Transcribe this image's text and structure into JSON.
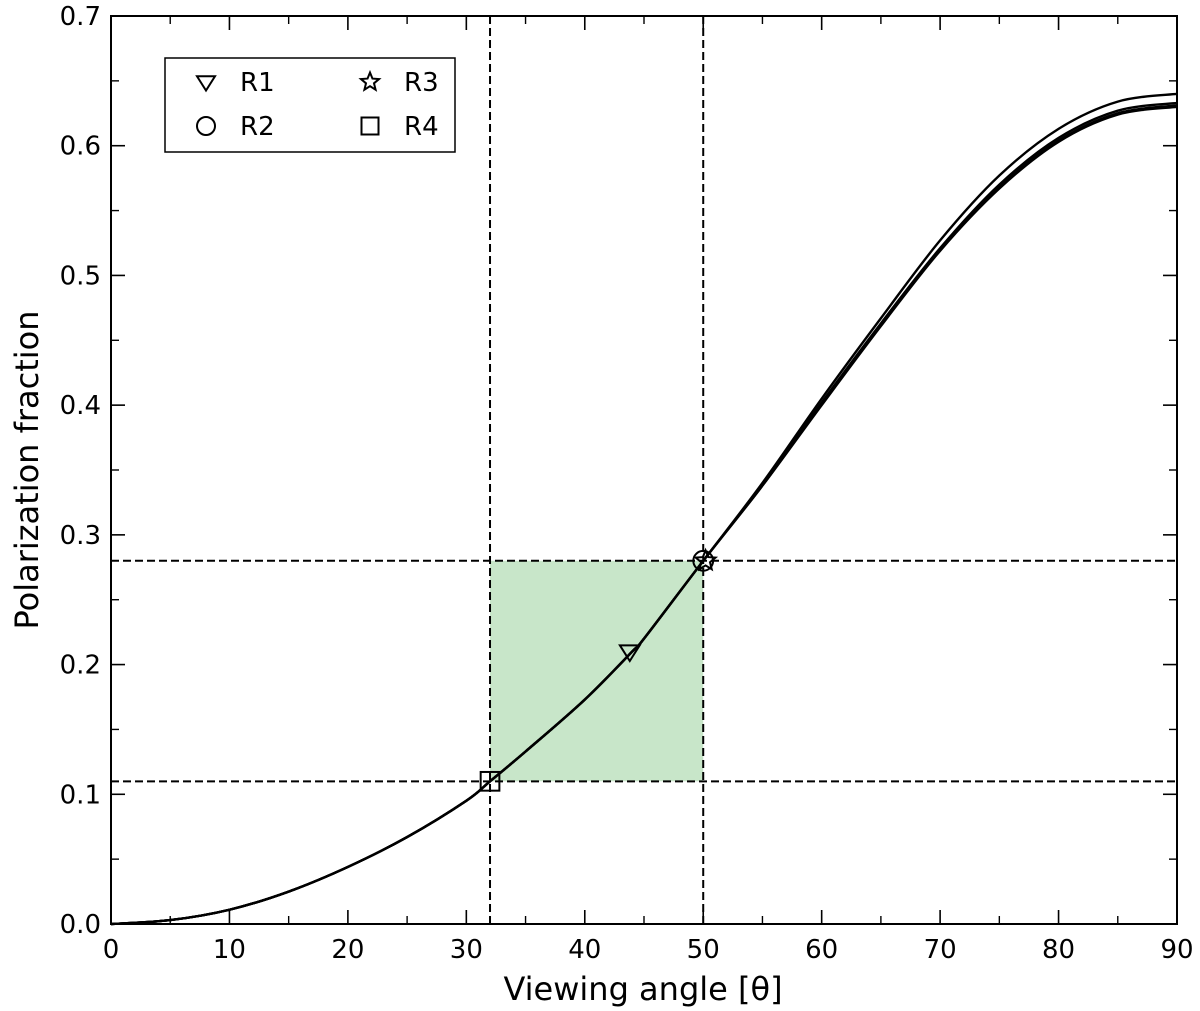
{
  "chart_data": {
    "type": "line",
    "xlabel": "Viewing angle [θ]",
    "ylabel": "Polarization fraction",
    "xlim": [
      0,
      90
    ],
    "ylim": [
      0,
      0.7
    ],
    "x_ticks": [
      0,
      10,
      20,
      30,
      40,
      50,
      60,
      70,
      80,
      90
    ],
    "x_tick_labels": [
      "0",
      "10",
      "20",
      "30",
      "40",
      "50",
      "60",
      "70",
      "80",
      "90"
    ],
    "y_ticks": [
      0.0,
      0.1,
      0.2,
      0.3,
      0.4,
      0.5,
      0.6,
      0.7
    ],
    "y_tick_labels": [
      "0.0",
      "0.1",
      "0.2",
      "0.3",
      "0.4",
      "0.5",
      "0.6",
      "0.7"
    ],
    "grid": false,
    "colors": {
      "line": "#000000",
      "band": "#c8e6c9"
    },
    "series": [
      {
        "x": [
          0,
          5,
          10,
          15,
          20,
          25,
          30,
          32,
          35,
          40,
          44,
          45,
          50,
          55,
          60,
          65,
          70,
          75,
          80,
          85,
          90
        ],
        "y": [
          0.0,
          0.003,
          0.011,
          0.025,
          0.044,
          0.067,
          0.095,
          0.11,
          0.133,
          0.173,
          0.21,
          0.22,
          0.28,
          0.34,
          0.405,
          0.467,
          0.527,
          0.577,
          0.613,
          0.634,
          0.64
        ]
      },
      {
        "x": [
          0,
          5,
          10,
          15,
          20,
          25,
          30,
          32,
          35,
          40,
          44,
          45,
          50,
          55,
          60,
          65,
          70,
          75,
          80,
          85,
          90
        ],
        "y": [
          0.0,
          0.003,
          0.011,
          0.025,
          0.044,
          0.067,
          0.095,
          0.11,
          0.133,
          0.173,
          0.21,
          0.22,
          0.28,
          0.339,
          0.402,
          0.463,
          0.521,
          0.57,
          0.606,
          0.627,
          0.633
        ]
      },
      {
        "x": [
          0,
          5,
          10,
          15,
          20,
          25,
          30,
          32,
          35,
          40,
          44,
          45,
          50,
          55,
          60,
          65,
          70,
          75,
          80,
          85,
          90
        ],
        "y": [
          0.0,
          0.003,
          0.011,
          0.025,
          0.044,
          0.067,
          0.095,
          0.11,
          0.133,
          0.173,
          0.21,
          0.22,
          0.28,
          0.338,
          0.401,
          0.462,
          0.52,
          0.568,
          0.604,
          0.625,
          0.631
        ]
      },
      {
        "x": [
          0,
          5,
          10,
          15,
          20,
          25,
          30,
          32,
          35,
          40,
          44,
          45,
          50,
          55,
          60,
          65,
          70,
          75,
          80,
          85,
          90
        ],
        "y": [
          0.0,
          0.003,
          0.011,
          0.025,
          0.044,
          0.067,
          0.095,
          0.11,
          0.133,
          0.173,
          0.21,
          0.22,
          0.28,
          0.338,
          0.4,
          0.461,
          0.519,
          0.567,
          0.603,
          0.624,
          0.63
        ]
      }
    ],
    "markers": [
      {
        "label": "R1",
        "shape": "triangle-down",
        "x": 43.8,
        "y": 0.21
      },
      {
        "label": "R2",
        "shape": "circle",
        "x": 50,
        "y": 0.28
      },
      {
        "label": "R3",
        "shape": "star",
        "x": 50.2,
        "y": 0.28
      },
      {
        "label": "R4",
        "shape": "square",
        "x": 32,
        "y": 0.11
      }
    ],
    "reference_lines": {
      "vertical_x": [
        32,
        50
      ],
      "horizontal_y": [
        0.11,
        0.28
      ]
    },
    "shaded_region": {
      "x": [
        32,
        50
      ],
      "y": [
        0.11,
        0.28
      ]
    },
    "legend": {
      "placement": "upper-left",
      "columns": 2,
      "entries": [
        {
          "label": "R1",
          "shape": "triangle-down"
        },
        {
          "label": "R2",
          "shape": "circle"
        },
        {
          "label": "R3",
          "shape": "star"
        },
        {
          "label": "R4",
          "shape": "square"
        }
      ]
    }
  }
}
